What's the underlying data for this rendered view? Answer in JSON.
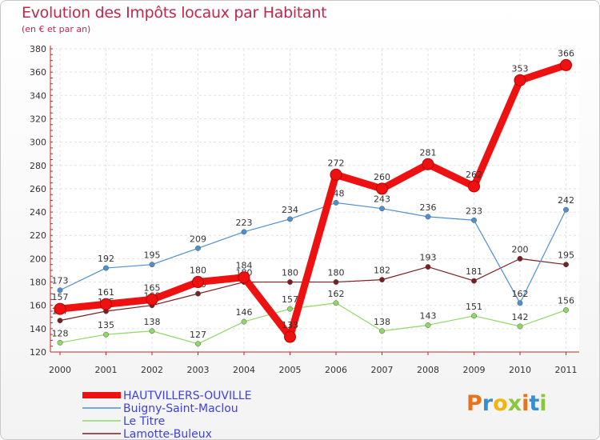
{
  "title": "Evolution des Impôts locaux par Habitant",
  "subtitle": "(en € et par an)",
  "logo": {
    "letters": [
      "P",
      "r",
      "o",
      "x",
      "i",
      "t",
      "i"
    ],
    "colors": [
      "#e8731c",
      "#3a8ecd",
      "#f3b311",
      "#8cc63f",
      "#e8731c",
      "#3a8ecd",
      "#8cc63f"
    ]
  },
  "chart_data": {
    "type": "line",
    "title": "Evolution des Impôts locaux par Habitant",
    "ylabel": "(en € et par an)",
    "xlabel": "",
    "categories": [
      "2000",
      "2001",
      "2002",
      "2003",
      "2004",
      "2005",
      "2006",
      "2007",
      "2008",
      "2009",
      "2010",
      "2011"
    ],
    "ylim": [
      120,
      380
    ],
    "yticks": [
      120,
      140,
      160,
      180,
      200,
      220,
      240,
      260,
      280,
      300,
      320,
      340,
      360,
      380
    ],
    "grid": true,
    "legend": "bottom-left",
    "series": [
      {
        "name": "Lamotte-Buleux",
        "color": "#7a1e22",
        "values": [
          147,
          155,
          160,
          170,
          180,
          180,
          180,
          182,
          193,
          181,
          200,
          195
        ]
      },
      {
        "name": "Le Titre",
        "color": "#8fd866",
        "values": [
          128,
          135,
          138,
          127,
          146,
          157,
          162,
          138,
          143,
          151,
          142,
          156
        ]
      },
      {
        "name": "Buigny-Saint-Maclou",
        "color": "#4e8fce",
        "values": [
          173,
          192,
          195,
          209,
          223,
          234,
          248,
          243,
          236,
          233,
          162,
          242
        ]
      },
      {
        "name": "HAUTVILLERS-OUVILLE",
        "color": "#ee1111",
        "values": [
          157,
          161,
          165,
          180,
          184,
          133,
          272,
          260,
          281,
          262,
          353,
          366
        ]
      }
    ],
    "legend_order": [
      "HAUTVILLERS-OUVILLE",
      "Buigny-Saint-Maclou",
      "Le Titre",
      "Lamotte-Buleux"
    ]
  }
}
